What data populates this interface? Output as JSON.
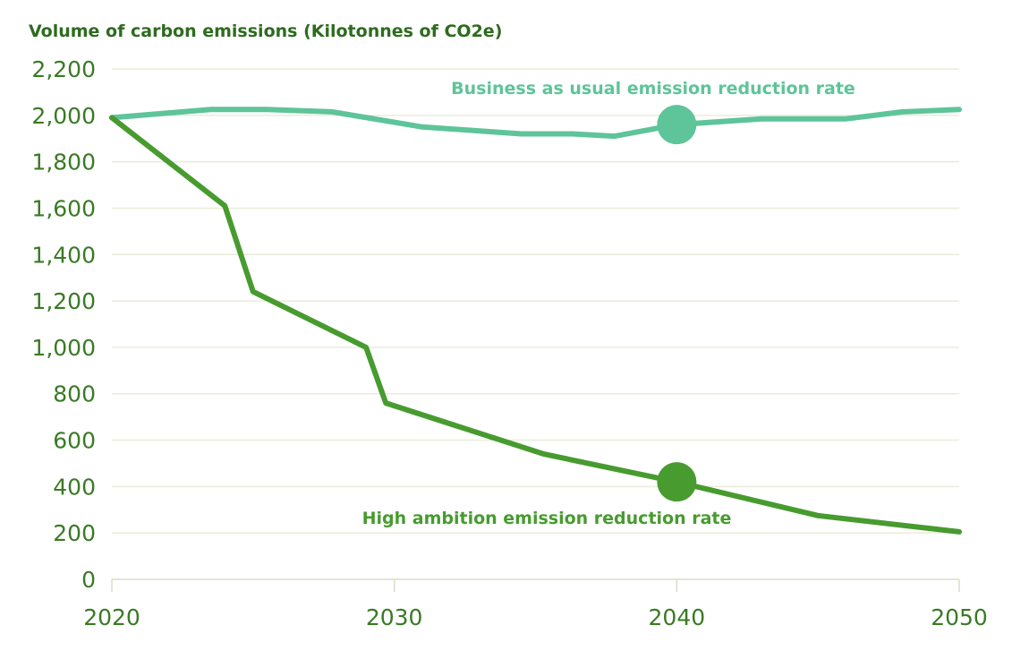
{
  "chart_data": {
    "type": "line",
    "title": "Volume of carbon emissions (Kilotonnes of CO2e)",
    "xlabel": "",
    "ylabel": "",
    "xlim": [
      2020,
      2050
    ],
    "ylim": [
      0,
      2200
    ],
    "x_ticks": [
      "2020",
      "2030",
      "2040",
      "2050"
    ],
    "y_ticks": [
      "0",
      "200",
      "400",
      "600",
      "800",
      "1,000",
      "1,200",
      "1,400",
      "1,600",
      "1,800",
      "2,000",
      "2,200"
    ],
    "grid": true,
    "series": [
      {
        "name": "Business as usual emission reduction rate",
        "color": "#5ec49a",
        "x": [
          2020,
          2023.5,
          2025.5,
          2027.8,
          2031,
          2034.5,
          2036.3,
          2037.8,
          2040,
          2043,
          2046,
          2048,
          2050
        ],
        "y": [
          1990,
          2025,
          2025,
          2015,
          1950,
          1920,
          1920,
          1910,
          1960,
          1985,
          1985,
          2015,
          2025
        ],
        "marker": {
          "x": 2040,
          "y": 1960
        }
      },
      {
        "name": "High ambition emission reduction rate",
        "color": "#479b2f",
        "x": [
          2020,
          2024,
          2025,
          2029,
          2029.7,
          2035.3,
          2040,
          2045,
          2050
        ],
        "y": [
          1990,
          1610,
          1240,
          1000,
          760,
          540,
          420,
          275,
          205
        ],
        "marker": {
          "x": 2040,
          "y": 420
        }
      }
    ]
  },
  "colors": {
    "title": "#2e6b1f",
    "tick": "#3a7a25",
    "grid": "#e9ecd9",
    "axis": "#d8dec8"
  }
}
